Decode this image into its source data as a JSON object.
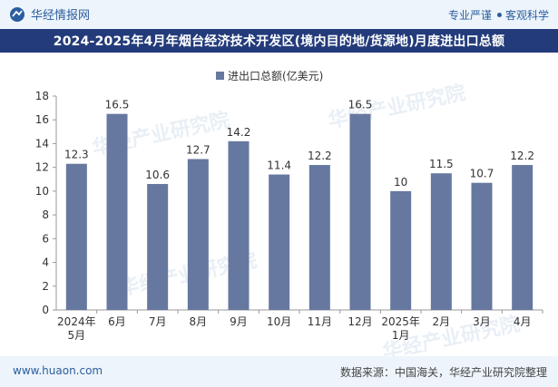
{
  "header": {
    "brand_name": "华经情报网",
    "tagline_left": "专业严谨",
    "tagline_right": "客观科学"
  },
  "title": "2024-2025年4月年烟台经济技术开发区(境内目的地/货源地)月度进出口总额",
  "footer": {
    "url": "www.huaon.com",
    "source": "数据来源：中国海关，华经产业研究院整理"
  },
  "watermark": "华经产业研究院",
  "colors": {
    "bar": "#66789f",
    "title_bg": "#233b7a",
    "accent": "#2b5e9e"
  },
  "chart_data": {
    "type": "bar",
    "legend": "进出口总额(亿美元)",
    "categories": [
      "2024年\n5月",
      "6月",
      "7月",
      "8月",
      "9月",
      "10月",
      "11月",
      "12月",
      "2025年\n1月",
      "2月",
      "3月",
      "4月"
    ],
    "values": [
      12.3,
      16.5,
      10.6,
      12.7,
      14.2,
      11.4,
      12.2,
      16.5,
      10,
      11.5,
      10.7,
      12.2
    ],
    "value_labels": [
      "12.3",
      "16.5",
      "10.6",
      "12.7",
      "14.2",
      "11.4",
      "12.2",
      "16.5",
      "10",
      "11.5",
      "10.7",
      "12.2"
    ],
    "ylim": [
      0,
      18
    ],
    "yticks": [
      0,
      2,
      4,
      6,
      8,
      10,
      12,
      14,
      16,
      18
    ],
    "xlabel": "",
    "ylabel": ""
  }
}
